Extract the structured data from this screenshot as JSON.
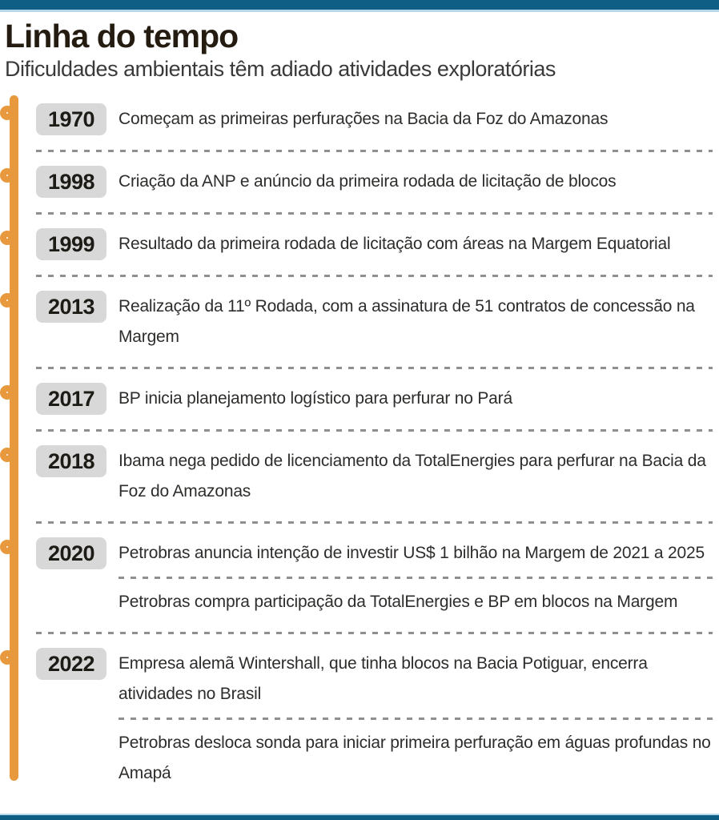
{
  "page": {
    "title": "Linha do tempo",
    "subtitle": "Dificuldades ambientais têm adiado atividades exploratórias"
  },
  "colors": {
    "accent_teal": "#0f5e86",
    "accent_teal_light": "#b7d8e9",
    "timeline_orange": "#e8993d",
    "year_box_gray": "#d8d8d8",
    "dash_gray": "#8f8f8f"
  },
  "timeline": {
    "entries": [
      {
        "year": "1970",
        "items": [
          "Começam as primeiras perfurações na Bacia da Foz do Amazonas"
        ]
      },
      {
        "year": "1998",
        "items": [
          "Criação da ANP e anúncio da primeira rodada de licitação de blocos"
        ]
      },
      {
        "year": "1999",
        "items": [
          "Resultado da primeira rodada de licitação com áreas na Margem Equatorial"
        ]
      },
      {
        "year": "2013",
        "items": [
          "Realização da 11º Rodada, com a assinatura de 51 contratos de concessão na Margem"
        ]
      },
      {
        "year": "2017",
        "items": [
          "BP inicia planejamento logístico para perfurar no Pará"
        ]
      },
      {
        "year": "2018",
        "items": [
          "Ibama nega pedido de licenciamento da TotalEnergies para perfurar na Bacia da Foz do Amazonas"
        ]
      },
      {
        "year": "2020",
        "items": [
          "Petrobras anuncia intenção de investir US$ 1 bilhão na Margem de 2021 a 2025",
          "Petrobras compra participação da TotalEnergies e BP em blocos na Margem"
        ]
      },
      {
        "year": "2022",
        "items": [
          "Empresa alemã Wintershall, que tinha blocos na Bacia Potiguar, encerra atividades no Brasil",
          "Petrobras desloca sonda para iniciar primeira perfuração em águas profundas no Amapá"
        ]
      }
    ]
  }
}
